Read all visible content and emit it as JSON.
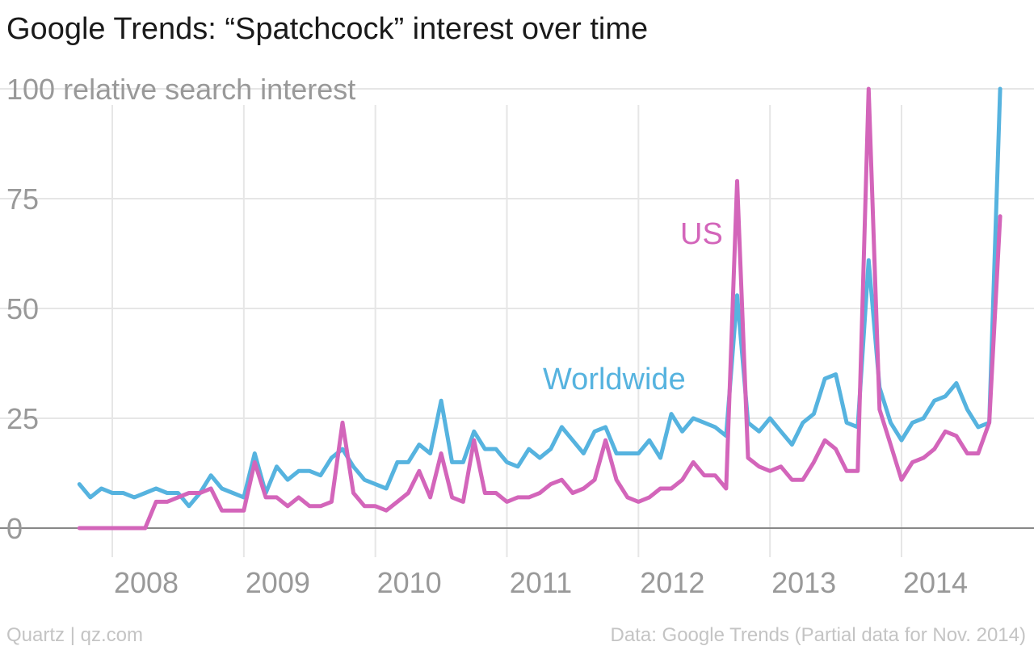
{
  "chart_data": {
    "type": "line",
    "title": "Google Trends: “Spatchcock” interest over time",
    "y_unit_label": "relative search interest",
    "ylim": [
      0,
      100
    ],
    "y_ticks": [
      0,
      25,
      50,
      75,
      100
    ],
    "x_ticks": [
      "2008",
      "2009",
      "2010",
      "2011",
      "2012",
      "2013",
      "2014"
    ],
    "xlim": [
      2007.583,
      2014.833
    ],
    "grid": true,
    "series": [
      {
        "name": "Worldwide",
        "color": "#56b3df",
        "x": [
          2007.75,
          2007.833,
          2007.917,
          2008.0,
          2008.083,
          2008.167,
          2008.25,
          2008.333,
          2008.417,
          2008.5,
          2008.583,
          2008.667,
          2008.75,
          2008.833,
          2008.917,
          2009.0,
          2009.083,
          2009.167,
          2009.25,
          2009.333,
          2009.417,
          2009.5,
          2009.583,
          2009.667,
          2009.75,
          2009.833,
          2009.917,
          2010.0,
          2010.083,
          2010.167,
          2010.25,
          2010.333,
          2010.417,
          2010.5,
          2010.583,
          2010.667,
          2010.75,
          2010.833,
          2010.917,
          2011.0,
          2011.083,
          2011.167,
          2011.25,
          2011.333,
          2011.417,
          2011.5,
          2011.583,
          2011.667,
          2011.75,
          2011.833,
          2011.917,
          2012.0,
          2012.083,
          2012.167,
          2012.25,
          2012.333,
          2012.417,
          2012.5,
          2012.583,
          2012.667,
          2012.75,
          2012.833,
          2012.917,
          2013.0,
          2013.083,
          2013.167,
          2013.25,
          2013.333,
          2013.417,
          2013.5,
          2013.583,
          2013.667,
          2013.75,
          2013.833,
          2013.917,
          2014.0,
          2014.083,
          2014.167,
          2014.25,
          2014.333,
          2014.417,
          2014.5,
          2014.583,
          2014.667,
          2014.75
        ],
        "values": [
          10,
          7,
          9,
          8,
          8,
          7,
          8,
          9,
          8,
          8,
          5,
          8,
          12,
          9,
          8,
          7,
          17,
          8,
          14,
          11,
          13,
          13,
          12,
          16,
          18,
          14,
          11,
          10,
          9,
          15,
          15,
          19,
          17,
          29,
          15,
          15,
          22,
          18,
          18,
          15,
          14,
          18,
          16,
          18,
          23,
          20,
          17,
          22,
          23,
          17,
          17,
          17,
          20,
          16,
          26,
          22,
          25,
          24,
          23,
          21,
          53,
          24,
          22,
          25,
          22,
          19,
          24,
          26,
          34,
          35,
          24,
          23,
          61,
          32,
          24,
          20,
          24,
          25,
          29,
          30,
          33,
          27,
          23,
          24,
          100
        ]
      },
      {
        "name": "US",
        "color": "#d365ba",
        "x": [
          2007.75,
          2007.833,
          2007.917,
          2008.0,
          2008.083,
          2008.167,
          2008.25,
          2008.333,
          2008.417,
          2008.5,
          2008.583,
          2008.667,
          2008.75,
          2008.833,
          2008.917,
          2009.0,
          2009.083,
          2009.167,
          2009.25,
          2009.333,
          2009.417,
          2009.5,
          2009.583,
          2009.667,
          2009.75,
          2009.833,
          2009.917,
          2010.0,
          2010.083,
          2010.167,
          2010.25,
          2010.333,
          2010.417,
          2010.5,
          2010.583,
          2010.667,
          2010.75,
          2010.833,
          2010.917,
          2011.0,
          2011.083,
          2011.167,
          2011.25,
          2011.333,
          2011.417,
          2011.5,
          2011.583,
          2011.667,
          2011.75,
          2011.833,
          2011.917,
          2012.0,
          2012.083,
          2012.167,
          2012.25,
          2012.333,
          2012.417,
          2012.5,
          2012.583,
          2012.667,
          2012.75,
          2012.833,
          2012.917,
          2013.0,
          2013.083,
          2013.167,
          2013.25,
          2013.333,
          2013.417,
          2013.5,
          2013.583,
          2013.667,
          2013.75,
          2013.833,
          2013.917,
          2014.0,
          2014.083,
          2014.167,
          2014.25,
          2014.333,
          2014.417,
          2014.5,
          2014.583,
          2014.667,
          2014.75
        ],
        "values": [
          0,
          0,
          0,
          0,
          0,
          0,
          0,
          6,
          6,
          7,
          8,
          8,
          9,
          4,
          4,
          4,
          15,
          7,
          7,
          5,
          7,
          5,
          5,
          6,
          24,
          8,
          5,
          5,
          4,
          6,
          8,
          13,
          7,
          17,
          7,
          6,
          20,
          8,
          8,
          6,
          7,
          7,
          8,
          10,
          11,
          8,
          9,
          11,
          20,
          11,
          7,
          6,
          7,
          9,
          9,
          11,
          15,
          12,
          12,
          9,
          79,
          16,
          14,
          13,
          14,
          11,
          11,
          15,
          20,
          18,
          13,
          13,
          100,
          27,
          19,
          11,
          15,
          16,
          18,
          22,
          21,
          17,
          17,
          24,
          71
        ]
      }
    ]
  },
  "footer": {
    "left": "Quartz | qz.com",
    "right": "Data: Google Trends (Partial data for Nov. 2014)"
  }
}
